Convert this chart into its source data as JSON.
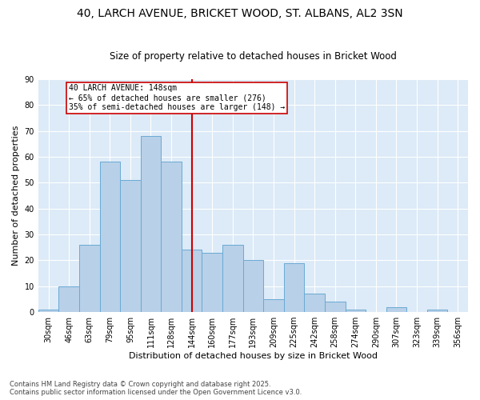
{
  "title": "40, LARCH AVENUE, BRICKET WOOD, ST. ALBANS, AL2 3SN",
  "subtitle": "Size of property relative to detached houses in Bricket Wood",
  "xlabel": "Distribution of detached houses by size in Bricket Wood",
  "ylabel": "Number of detached properties",
  "categories": [
    "30sqm",
    "46sqm",
    "63sqm",
    "79sqm",
    "95sqm",
    "111sqm",
    "128sqm",
    "144sqm",
    "160sqm",
    "177sqm",
    "193sqm",
    "209sqm",
    "225sqm",
    "242sqm",
    "258sqm",
    "274sqm",
    "290sqm",
    "307sqm",
    "323sqm",
    "339sqm",
    "356sqm"
  ],
  "values": [
    1,
    10,
    26,
    58,
    51,
    68,
    58,
    24,
    23,
    26,
    20,
    5,
    19,
    7,
    4,
    1,
    0,
    2,
    0,
    1,
    0
  ],
  "bar_color": "#b8d0e8",
  "bar_edge_color": "#6aaad4",
  "vline_color": "#cc0000",
  "annotation_text": "40 LARCH AVENUE: 148sqm\n← 65% of detached houses are smaller (276)\n35% of semi-detached houses are larger (148) →",
  "annotation_box_color": "#cc0000",
  "annotation_bg": "white",
  "footnote": "Contains HM Land Registry data © Crown copyright and database right 2025.\nContains public sector information licensed under the Open Government Licence v3.0.",
  "ylim": [
    0,
    90
  ],
  "yticks": [
    0,
    10,
    20,
    30,
    40,
    50,
    60,
    70,
    80,
    90
  ],
  "plot_bg_color": "#ddeaf7",
  "title_fontsize": 10,
  "subtitle_fontsize": 8.5,
  "xlabel_fontsize": 8,
  "ylabel_fontsize": 8,
  "tick_fontsize": 7,
  "annotation_fontsize": 7,
  "footnote_fontsize": 6
}
